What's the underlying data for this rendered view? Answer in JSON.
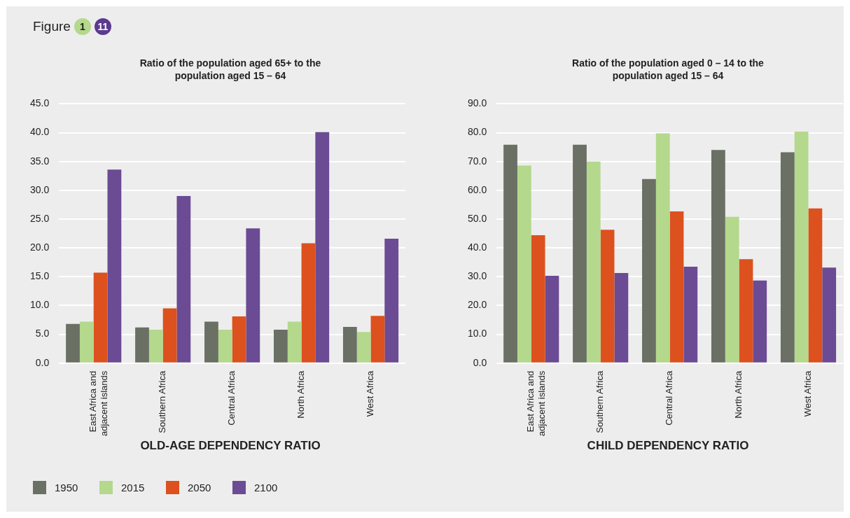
{
  "chart_data": [
    {
      "type": "bar",
      "title": "Ratio of the population aged 65+ to the population aged 15 – 64",
      "xlabel": "OLD-AGE DEPENDENCY RATIO",
      "annotations": [
        "Figure",
        "1",
        "11"
      ],
      "categories": [
        "East Africa and adjacent islands",
        "Southern Africa",
        "Central Africa",
        "North Africa",
        "West Africa"
      ],
      "series": [
        {
          "name": "1950",
          "color": "#6a7064",
          "values": [
            6.8,
            6.2,
            7.2,
            5.8,
            6.3
          ]
        },
        {
          "name": "2015",
          "color": "#b4d88c",
          "values": [
            7.2,
            5.8,
            5.8,
            7.2,
            5.4
          ]
        },
        {
          "name": "2050",
          "color": "#dc511e",
          "values": [
            15.7,
            9.5,
            8.1,
            20.8,
            8.2
          ]
        },
        {
          "name": "2100",
          "color": "#6b4b94",
          "values": [
            33.6,
            29.0,
            23.4,
            40.1,
            21.6
          ]
        }
      ],
      "ylim": [
        0,
        45
      ],
      "yticks": [
        {
          "value": 0,
          "label": "0.0"
        },
        {
          "value": 5,
          "label": "5.0"
        },
        {
          "value": 10,
          "label": "10.0"
        },
        {
          "value": 15,
          "label": "15.0"
        },
        {
          "value": 20,
          "label": "20.0"
        },
        {
          "value": 25,
          "label": "25.0"
        },
        {
          "value": 30,
          "label": "30.0"
        },
        {
          "value": 35,
          "label": "35.0"
        },
        {
          "value": 40,
          "label": "40.0"
        },
        {
          "value": 45,
          "label": "45.0"
        }
      ],
      "grid": "y",
      "legend": "bottom left"
    },
    {
      "type": "bar",
      "title": "Ratio of the population aged 0 – 14 to the population aged 15 – 64",
      "xlabel": "CHILD DEPENDENCY RATIO",
      "categories": [
        "East Africa and adjacent islands",
        "Southern Africa",
        "Central Africa",
        "North Africa",
        "West Africa"
      ],
      "series": [
        {
          "color": "#6a7064",
          "values": [
            75.8,
            75.8,
            63.9,
            74.0,
            73.2
          ]
        },
        {
          "color": "#b4d88c",
          "values": [
            68.6,
            70.0,
            79.8,
            50.8,
            80.4
          ]
        },
        {
          "color": "#dc511e",
          "values": [
            44.4,
            46.3,
            52.7,
            36.1,
            53.7
          ]
        },
        {
          "color": "#6b4b94",
          "values": [
            30.3,
            31.3,
            33.5,
            28.7,
            33.2
          ]
        }
      ],
      "ylim": [
        0,
        90
      ],
      "yticks": [
        {
          "value": 0,
          "label": "0.0"
        },
        {
          "value": 10,
          "label": "10.0"
        },
        {
          "value": 20,
          "label": "20.0"
        },
        {
          "value": 30,
          "label": "30.0"
        },
        {
          "value": 40,
          "label": "40.0"
        },
        {
          "value": 50,
          "label": "50.0"
        },
        {
          "value": 60,
          "label": "60.0"
        },
        {
          "value": 70,
          "label": "70.0"
        },
        {
          "value": 80,
          "label": "80.0"
        },
        {
          "value": 90,
          "label": "90.0"
        }
      ],
      "grid": "y"
    }
  ]
}
